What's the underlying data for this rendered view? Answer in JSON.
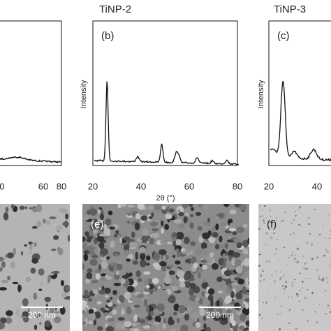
{
  "panels": [
    {
      "ticks": [
        "0",
        "60",
        "80"
      ]
    },
    {
      "title": "TiNP-2",
      "label": "(b)",
      "ylabel": "Intensity",
      "ticks": [
        "20",
        "40",
        "60",
        "80"
      ],
      "xlabel": "2θ (°)"
    },
    {
      "title": "TiNP-3",
      "label": "(c)",
      "ylabel": "Intensity",
      "ticks": [
        "20",
        "40"
      ]
    }
  ],
  "images": [
    {
      "scale": "200 nm"
    },
    {
      "label": "(e)",
      "scale": "200 nm"
    },
    {
      "label": "(f)"
    }
  ]
}
